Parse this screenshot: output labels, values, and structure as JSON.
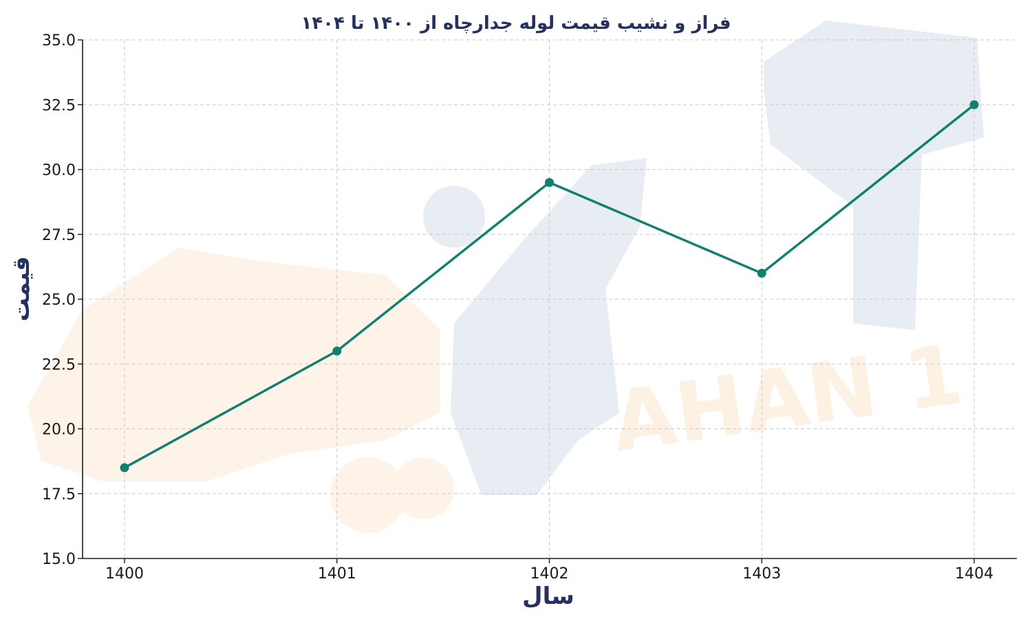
{
  "chart_data": {
    "type": "line",
    "title": "فراز و نشیب قیمت لوله جدارچاه از ۱۴۰۰ تا ۱۴۰۴",
    "xlabel": "سال",
    "ylabel": "قیمت",
    "categories": [
      "1400",
      "1401",
      "1402",
      "1403",
      "1404"
    ],
    "series": [
      {
        "values": [
          18.5,
          23.0,
          29.5,
          26.0,
          32.5
        ]
      }
    ],
    "ylim": [
      15.0,
      35.0
    ],
    "yticks": [
      "15.0",
      "17.5",
      "20.0",
      "22.5",
      "25.0",
      "27.5",
      "30.0",
      "32.5",
      "35.0"
    ],
    "grid": true,
    "markers": true,
    "line_color": "#13806f"
  },
  "watermark": {
    "text": "AHAN 1",
    "colors": {
      "blue": "#e8ecf3",
      "orange": "#fdf3e8"
    }
  }
}
